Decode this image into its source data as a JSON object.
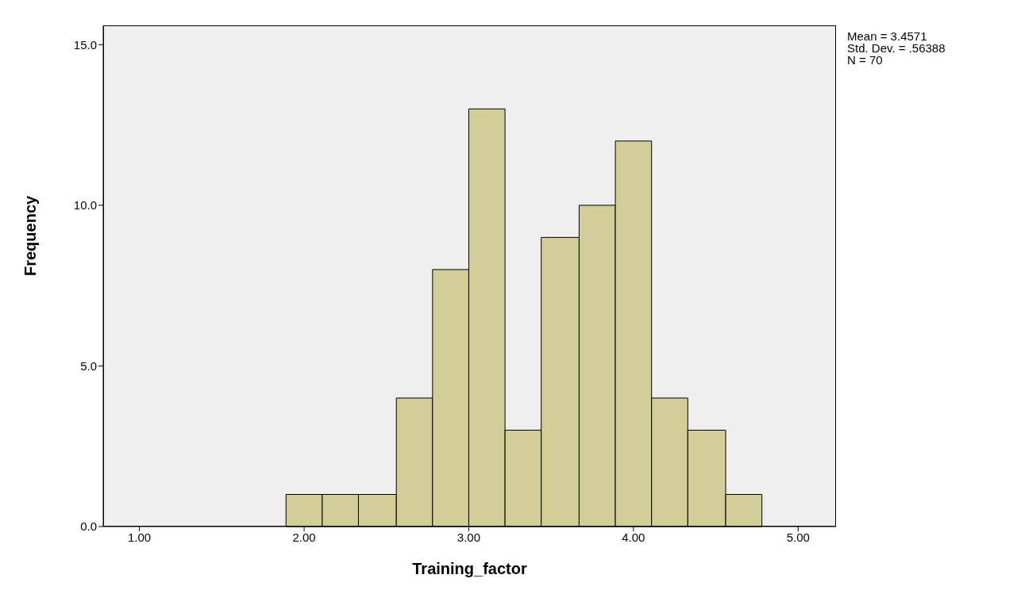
{
  "chart_data": {
    "type": "histogram",
    "xlabel": "Training_factor",
    "ylabel": "Frequency",
    "bins": [
      1.89,
      2.11,
      2.33,
      2.56,
      2.78,
      3.0,
      3.22,
      3.44,
      3.67,
      3.89,
      4.11,
      4.33,
      4.56,
      4.78
    ],
    "values": [
      1,
      1,
      1,
      4,
      8,
      13,
      3,
      9,
      10,
      12,
      4,
      3,
      1
    ],
    "color": "#d3ce97",
    "xlim": [
      0.78,
      5.23
    ],
    "xticks": [
      {
        "value": 1,
        "label": "1.00"
      },
      {
        "value": 2,
        "label": "2.00"
      },
      {
        "value": 3,
        "label": "3.00"
      },
      {
        "value": 4,
        "label": "4.00"
      },
      {
        "value": 5,
        "label": "5.00"
      }
    ],
    "ylim": [
      0,
      15.6
    ],
    "yticks": [
      {
        "value": 0,
        "label": "0.0"
      },
      {
        "value": 5,
        "label": "5.0"
      },
      {
        "value": 10,
        "label": "10.0"
      },
      {
        "value": 15,
        "label": "15.0"
      }
    ],
    "grid": false,
    "annotations": [
      "Mean = 3.4571",
      "Std. Dev. = .56388",
      "N = 70"
    ]
  }
}
